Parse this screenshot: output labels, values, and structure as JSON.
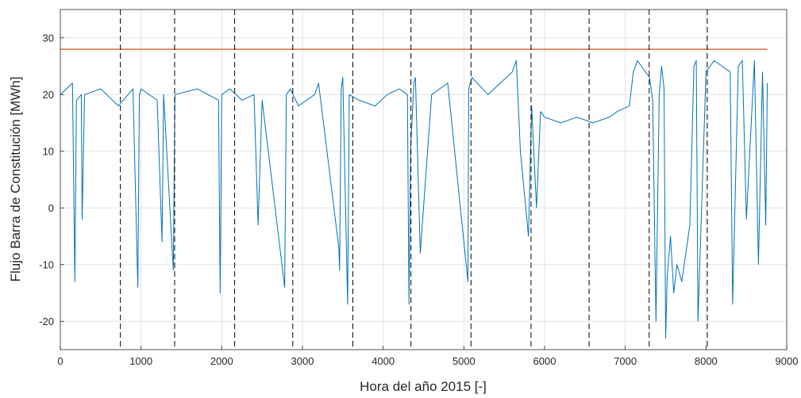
{
  "chart_data": {
    "type": "line",
    "title": "",
    "xlabel": "Hora del año 2015 [-]",
    "ylabel": "Flujo Barra de Constitución [MWh]",
    "xlim": [
      0,
      9000
    ],
    "ylim": [
      -25,
      35
    ],
    "xticks": [
      0,
      1000,
      2000,
      3000,
      4000,
      5000,
      6000,
      7000,
      8000,
      9000
    ],
    "yticks": [
      -20,
      -10,
      0,
      10,
      20,
      30
    ],
    "xtick_labels": [
      "0",
      "1000",
      "2000",
      "3000",
      "4000",
      "5000",
      "6000",
      "7000",
      "8000",
      "9000"
    ],
    "ytick_labels": [
      "-20",
      "-10",
      "0",
      "10",
      "20",
      "30"
    ],
    "grid": true,
    "series": [
      {
        "name": "",
        "color": "#0072BD",
        "kind": "hourly flow trace",
        "x": [
          0,
          150,
          180,
          200,
          260,
          270,
          300,
          500,
          720,
          900,
          960,
          980,
          1000,
          1200,
          1260,
          1280,
          1400,
          1420,
          1700,
          1960,
          1980,
          2000,
          2100,
          2250,
          2400,
          2450,
          2500,
          2780,
          2800,
          2850,
          2950,
          3150,
          3200,
          3450,
          3460,
          3480,
          3500,
          3560,
          3580,
          3700,
          3900,
          4050,
          4200,
          4300,
          4320,
          4340,
          4380,
          4400,
          4460,
          4600,
          4700,
          4800,
          5050,
          5060,
          5100,
          5300,
          5600,
          5650,
          5700,
          5800,
          5840,
          5900,
          5950,
          6000,
          6200,
          6400,
          6600,
          6800,
          6900,
          7050,
          7100,
          7150,
          7200,
          7300,
          7340,
          7380,
          7420,
          7450,
          7480,
          7500,
          7520,
          7560,
          7600,
          7640,
          7700,
          7750,
          7800,
          7850,
          7880,
          7900,
          8000,
          8100,
          8200,
          8300,
          8330,
          8350,
          8400,
          8450,
          8500,
          8600,
          8650,
          8700,
          8740,
          8760
        ],
        "y": [
          20,
          22,
          -13,
          19,
          20,
          -2,
          20,
          21,
          18,
          21,
          -14,
          20,
          21,
          19,
          -6,
          20,
          -11,
          20,
          21,
          19,
          -15,
          20,
          21,
          19,
          20,
          -3,
          19,
          -14,
          20,
          21,
          18,
          20,
          22,
          -7,
          -11,
          21,
          23,
          -17,
          20,
          19,
          18,
          20,
          21,
          20,
          -17,
          10,
          22,
          23,
          -8,
          20,
          21,
          22,
          -13,
          21,
          23,
          20,
          24,
          26,
          10,
          -5,
          18,
          0,
          17,
          16,
          15,
          16,
          15,
          16,
          17,
          18,
          24,
          26,
          25,
          23,
          19,
          -20,
          20,
          25,
          21,
          -23,
          -12,
          -5,
          -15,
          -10,
          -13,
          -8,
          -3,
          25,
          26,
          -20,
          24,
          26,
          25,
          24,
          -17,
          -5,
          25,
          26,
          -2,
          26,
          -10,
          24,
          -3,
          22
        ]
      },
      {
        "name": "",
        "color": "#D95319",
        "kind": "reference level",
        "x": [
          0,
          8760
        ],
        "y": [
          28,
          28
        ]
      }
    ],
    "vertical_markers": {
      "style": "dashed",
      "color": "#000000",
      "x": [
        744,
        1416,
        2160,
        2880,
        3624,
        4344,
        5088,
        5832,
        6552,
        7296,
        8016
      ]
    }
  }
}
